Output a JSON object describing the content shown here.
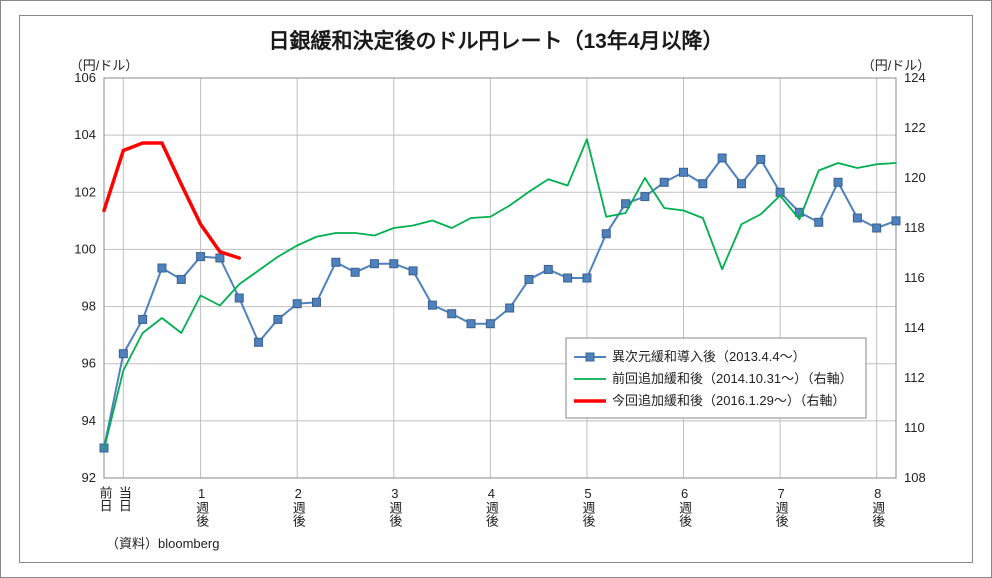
{
  "chart": {
    "type": "line",
    "title": "日銀緩和決定後のドル円レート（13年4月以降）",
    "left_unit": "（円/ドル）",
    "right_unit": "（円/ドル）",
    "source": "（資料）bloomberg",
    "background_color": "#ffffff",
    "grid_color": "#bfbfbf",
    "border_color": "#888888",
    "y_left": {
      "min": 92,
      "max": 106,
      "ticks": [
        92,
        94,
        96,
        98,
        100,
        102,
        104,
        106
      ]
    },
    "y_right": {
      "min": 108,
      "max": 124,
      "ticks": [
        108,
        110,
        112,
        114,
        116,
        118,
        120,
        122,
        124
      ]
    },
    "x": {
      "min": 0,
      "max": 41,
      "ticks": [
        0,
        1,
        5,
        10,
        15,
        20,
        25,
        30,
        35,
        40
      ],
      "labels": [
        "前日",
        "当日",
        "1週後",
        "2週後",
        "3週後",
        "4週後",
        "5週後",
        "6週後",
        "7週後",
        "8週後"
      ]
    },
    "series": [
      {
        "key": "s1",
        "label": "異次元緩和導入後（2013.4.4～）",
        "axis": "left",
        "color": "#4f81bd",
        "line_width": 2,
        "marker": "square",
        "marker_size": 8,
        "marker_fill": "#4f81bd",
        "marker_stroke": "#39618f",
        "data": [
          [
            0,
            93.05
          ],
          [
            1,
            96.35
          ],
          [
            2,
            97.55
          ],
          [
            3,
            99.35
          ],
          [
            4,
            98.95
          ],
          [
            5,
            99.75
          ],
          [
            6,
            99.7
          ],
          [
            7,
            98.3
          ],
          [
            8,
            96.75
          ],
          [
            9,
            97.55
          ],
          [
            10,
            98.1
          ],
          [
            11,
            98.15
          ],
          [
            12,
            99.55
          ],
          [
            13,
            99.2
          ],
          [
            14,
            99.5
          ],
          [
            15,
            99.5
          ],
          [
            16,
            99.25
          ],
          [
            17,
            98.05
          ],
          [
            18,
            97.75
          ],
          [
            19,
            97.4
          ],
          [
            20,
            97.4
          ],
          [
            21,
            97.95
          ],
          [
            22,
            98.95
          ],
          [
            23,
            99.3
          ],
          [
            24,
            99.0
          ],
          [
            25,
            99.0
          ],
          [
            26,
            100.55
          ],
          [
            27,
            101.6
          ],
          [
            28,
            101.85
          ],
          [
            29,
            102.35
          ],
          [
            30,
            102.7
          ],
          [
            31,
            102.3
          ],
          [
            32,
            103.2
          ],
          [
            33,
            102.3
          ],
          [
            34,
            103.15
          ],
          [
            35,
            102.0
          ],
          [
            36,
            101.3
          ],
          [
            37,
            100.95
          ],
          [
            38,
            102.35
          ],
          [
            39,
            101.1
          ],
          [
            40,
            100.75
          ],
          [
            41,
            101.0
          ]
        ]
      },
      {
        "key": "s2",
        "label": "前回追加緩和後（2014.10.31～）（右軸）",
        "axis": "right",
        "color": "#00b050",
        "line_width": 1.8,
        "marker": "none",
        "data": [
          [
            0,
            109.15
          ],
          [
            1,
            112.3
          ],
          [
            2,
            113.8
          ],
          [
            3,
            114.4
          ],
          [
            4,
            113.8
          ],
          [
            5,
            115.3
          ],
          [
            6,
            114.9
          ],
          [
            7,
            115.75
          ],
          [
            8,
            116.3
          ],
          [
            9,
            116.85
          ],
          [
            10,
            117.3
          ],
          [
            11,
            117.65
          ],
          [
            12,
            117.8
          ],
          [
            13,
            117.8
          ],
          [
            14,
            117.7
          ],
          [
            15,
            118.0
          ],
          [
            16,
            118.1
          ],
          [
            17,
            118.3
          ],
          [
            18,
            118.0
          ],
          [
            19,
            118.4
          ],
          [
            20,
            118.45
          ],
          [
            21,
            118.9
          ],
          [
            22,
            119.45
          ],
          [
            23,
            119.95
          ],
          [
            24,
            119.7
          ],
          [
            25,
            121.55
          ],
          [
            26,
            118.45
          ],
          [
            27,
            118.6
          ],
          [
            28,
            120.0
          ],
          [
            29,
            118.8
          ],
          [
            30,
            118.7
          ],
          [
            31,
            118.4
          ],
          [
            32,
            116.35
          ],
          [
            33,
            118.15
          ],
          [
            34,
            118.55
          ],
          [
            35,
            119.3
          ],
          [
            36,
            118.35
          ],
          [
            37,
            120.3
          ],
          [
            38,
            120.6
          ],
          [
            39,
            120.4
          ],
          [
            40,
            120.55
          ],
          [
            41,
            120.6
          ]
        ]
      },
      {
        "key": "s3",
        "label": "今回追加緩和後（2016.1.29～）（右軸）",
        "axis": "right",
        "color": "#ff0000",
        "line_width": 3.5,
        "marker": "none",
        "data": [
          [
            0,
            118.7
          ],
          [
            1,
            121.1
          ],
          [
            2,
            121.4
          ],
          [
            3,
            121.4
          ],
          [
            4,
            119.75
          ],
          [
            5,
            118.15
          ],
          [
            6,
            117.05
          ],
          [
            7,
            116.8
          ]
        ]
      }
    ],
    "legend": {
      "items": [
        {
          "series": "s1"
        },
        {
          "series": "s2"
        },
        {
          "series": "s3"
        }
      ]
    }
  }
}
